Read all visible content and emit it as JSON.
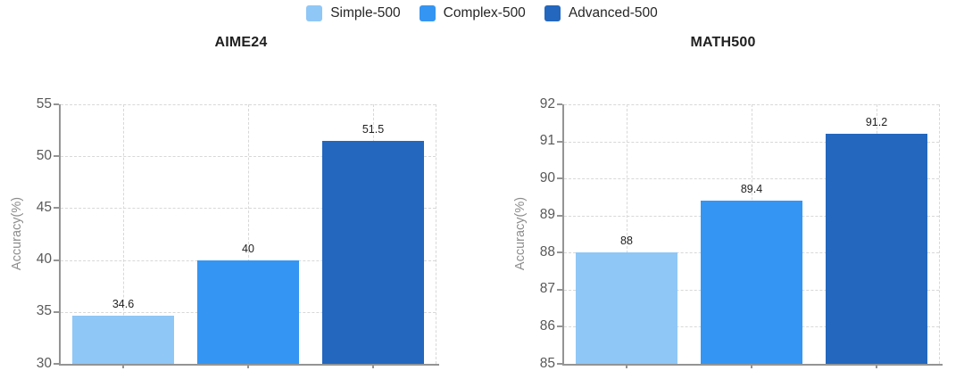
{
  "legend": {
    "items": [
      {
        "label": "Simple-500",
        "color": "#8FC7F6"
      },
      {
        "label": "Complex-500",
        "color": "#3595F2"
      },
      {
        "label": "Advanced-500",
        "color": "#2367BE"
      }
    ],
    "position": "top-center"
  },
  "chart_data": [
    {
      "type": "bar",
      "title": "AIME24",
      "ylabel": "Accuracy(%)",
      "xlabel": "",
      "categories": [
        "Simple-500",
        "Complex-500",
        "Advanced-500"
      ],
      "values": [
        34.6,
        40,
        51.5
      ],
      "value_labels": [
        "34.6",
        "40",
        "51.5"
      ],
      "ylim": [
        30,
        55
      ],
      "ytick_step": 5,
      "ytick_labels": [
        "30",
        "35",
        "40",
        "45",
        "50",
        "55"
      ],
      "grid": true,
      "legend_position": "top"
    },
    {
      "type": "bar",
      "title": "MATH500",
      "ylabel": "Accuracy(%)",
      "xlabel": "",
      "categories": [
        "Simple-500",
        "Complex-500",
        "Advanced-500"
      ],
      "values": [
        88,
        89.4,
        91.2
      ],
      "value_labels": [
        "88",
        "89.4",
        "91.2"
      ],
      "ylim": [
        85,
        92
      ],
      "ytick_step": 1,
      "ytick_labels": [
        "85",
        "86",
        "87",
        "88",
        "89",
        "90",
        "91",
        "92"
      ],
      "grid": true,
      "legend_position": "top"
    }
  ],
  "colors": {
    "series": [
      "#8FC7F6",
      "#3595F2",
      "#2367BE"
    ],
    "grid": "#D8D8D8",
    "axis": "#949494",
    "tick_label": "#595959",
    "axis_title": "#8C8C8C",
    "chart_title": "#1F1F1F",
    "value_label": "#1F1F1F"
  }
}
